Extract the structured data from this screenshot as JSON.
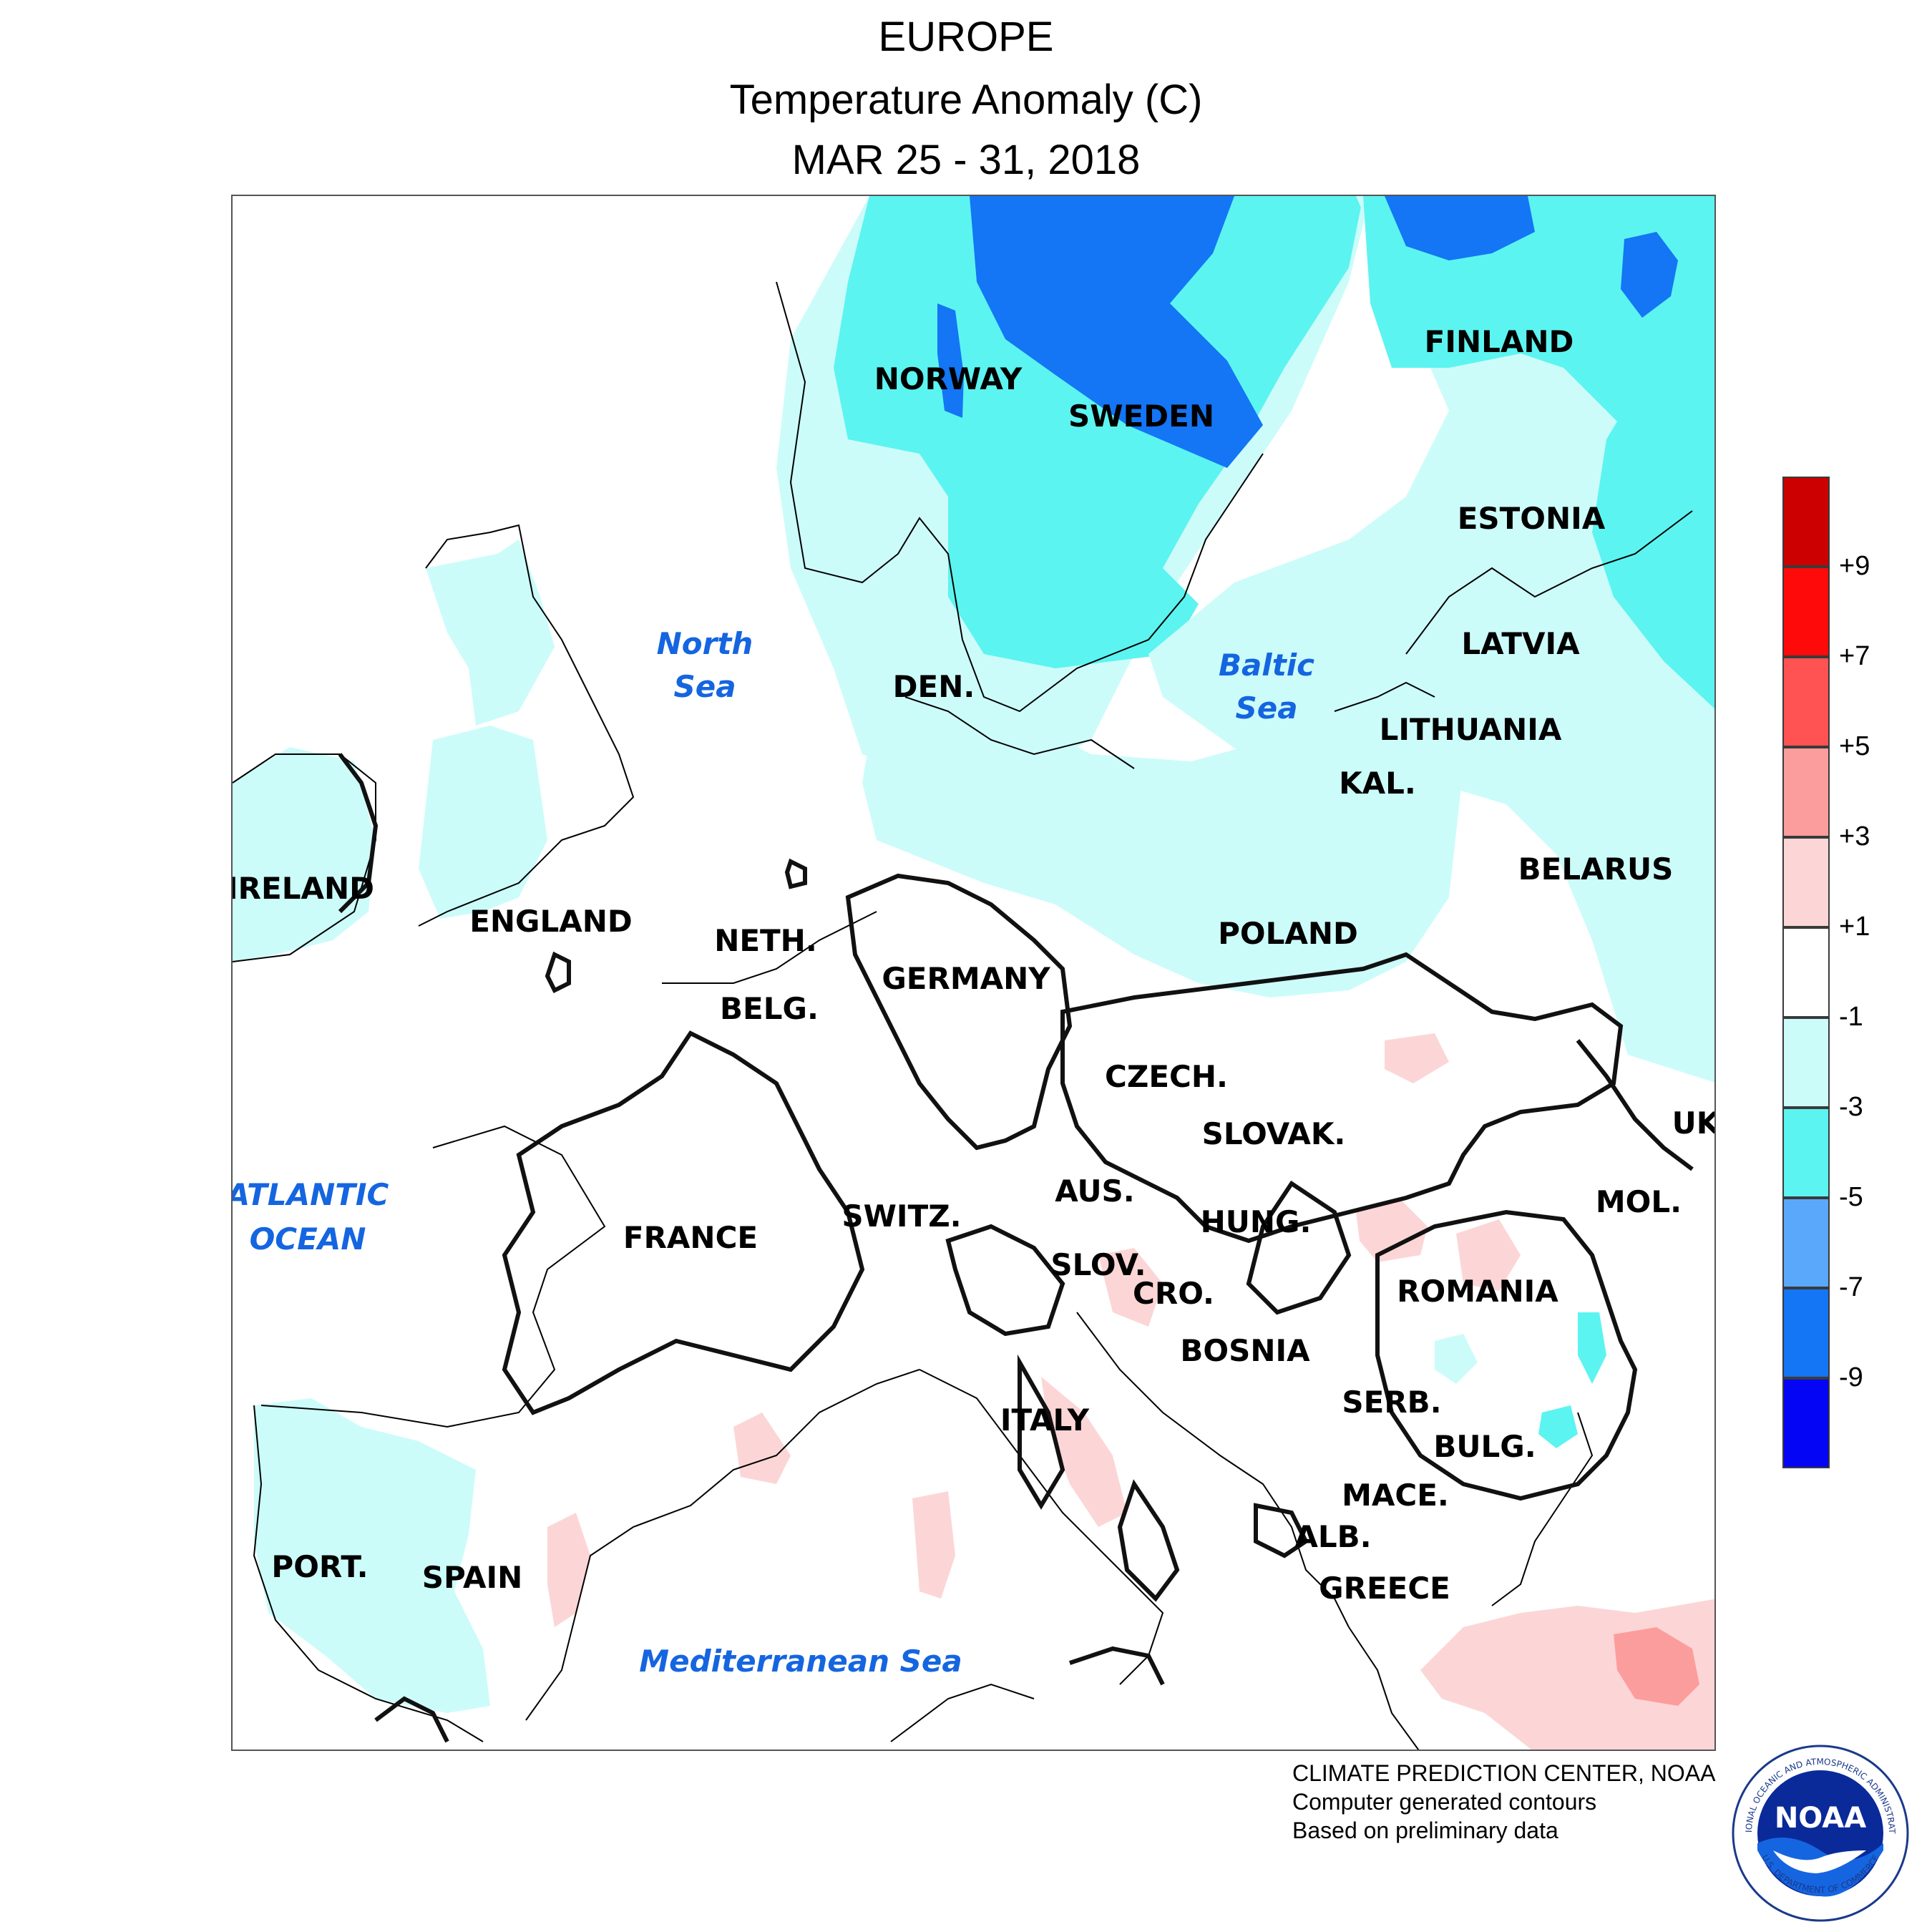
{
  "header": {
    "region": "EUROPE",
    "variable": "Temperature Anomaly (C)",
    "period": "MAR 25 - 31, 2018"
  },
  "map": {
    "countries": [
      "NORWAY",
      "SWEDEN",
      "FINLAND",
      "ESTONIA",
      "LATVIA",
      "LITHUANIA",
      "KAL.",
      "DEN.",
      "BELARUS",
      "POLAND",
      "IRELAND",
      "ENGLAND",
      "NETH.",
      "BELG.",
      "GERMANY",
      "CZECH.",
      "SLOVAK.",
      "UK",
      "MOL.",
      "AUS.",
      "HUNG.",
      "FRANCE",
      "SWITZ.",
      "SLOV.",
      "CRO.",
      "ROMANIA",
      "BOSNIA",
      "SERB.",
      "BULG.",
      "ITALY",
      "MACE.",
      "ALB.",
      "GREECE",
      "PORT.",
      "SPAIN"
    ],
    "water_bodies": {
      "north_sea_1": "North",
      "north_sea_2": "Sea",
      "baltic_1": "Baltic",
      "baltic_2": "Sea",
      "atlantic_1": "ATLANTIC",
      "atlantic_2": "OCEAN",
      "mediterranean": "Mediterranean Sea"
    },
    "shading_colors": {
      "minus_1_to_minus_3": "#ccfcfa",
      "minus_3_to_minus_5": "#5cf4f0",
      "minus_9_to_minus_7": "#1475f5",
      "plus_1_to_plus_3": "#fcd6d6",
      "plus_3_to_plus_5": "#fc9d9d"
    }
  },
  "legend": {
    "bins": [
      {
        "color": "#cc0000"
      },
      {
        "color": "#ff0a0a"
      },
      {
        "color": "#ff5252"
      },
      {
        "color": "#fc9d9d"
      },
      {
        "color": "#fcd6d6"
      },
      {
        "color": "#ffffff"
      },
      {
        "color": "#ccfcfa"
      },
      {
        "color": "#5cf4f0"
      },
      {
        "color": "#5aa8fc"
      },
      {
        "color": "#1475f5"
      },
      {
        "color": "#0505f5"
      }
    ],
    "ticks": [
      "+9",
      "+7",
      "+5",
      "+3",
      "+1",
      "-1",
      "-3",
      "-5",
      "-7",
      "-9"
    ]
  },
  "credits": {
    "line1": "CLIMATE PREDICTION CENTER, NOAA",
    "line2": "Computer generated contours",
    "line3": "Based on preliminary data"
  },
  "logo": {
    "center_text": "NOAA",
    "ring_text_top": "NATIONAL OCEANIC AND ATMOSPHERIC ADMINISTRATION",
    "ring_text_bottom": "U.S. DEPARTMENT OF COMMERCE"
  }
}
